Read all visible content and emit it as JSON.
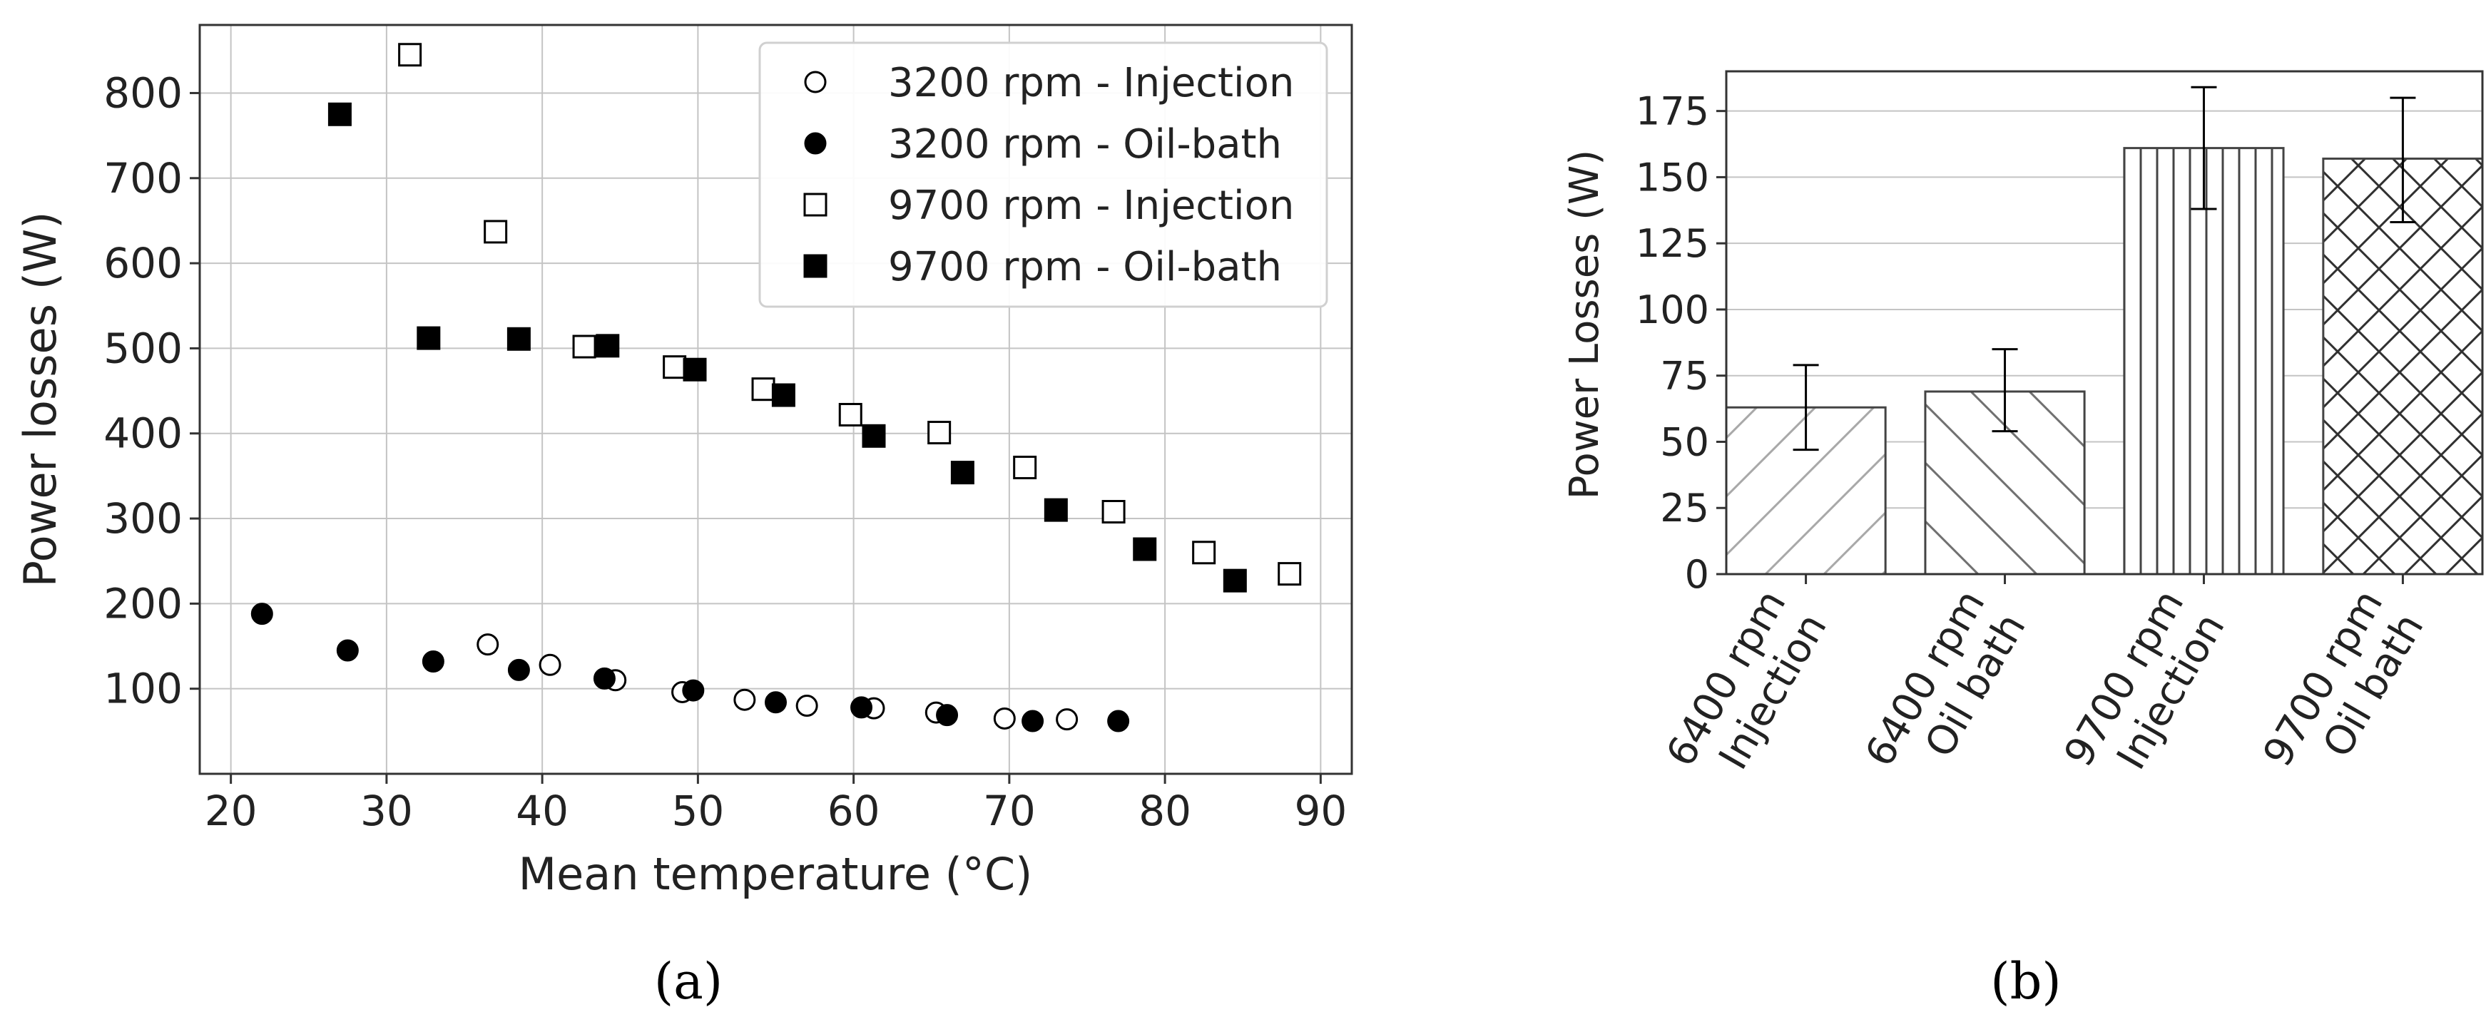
{
  "chart_data": [
    {
      "type": "scatter",
      "panel_label": "(a)",
      "xlabel": "Mean temperature (°C)",
      "ylabel": "Power losses (W)",
      "xlim": [
        18,
        92
      ],
      "ylim": [
        0,
        880
      ],
      "xticks": [
        20,
        30,
        40,
        50,
        60,
        70,
        80,
        90
      ],
      "yticks": [
        100,
        200,
        300,
        400,
        500,
        600,
        700,
        800
      ],
      "grid": true,
      "legend_position": "top-right",
      "series": [
        {
          "name": "3200 rpm - Injection",
          "marker": "circle-open",
          "x": [
            36.5,
            40.5,
            44.7,
            49.0,
            53.0,
            57.0,
            61.3,
            65.3,
            69.7,
            73.7
          ],
          "y": [
            152,
            128,
            110,
            96,
            87,
            80,
            77,
            72,
            65,
            64
          ]
        },
        {
          "name": "3200 rpm - Oil-bath",
          "marker": "circle-filled",
          "x": [
            22.0,
            27.5,
            33.0,
            38.5,
            44.0,
            49.7,
            55.0,
            60.5,
            66.0,
            71.5,
            77.0
          ],
          "y": [
            188,
            145,
            132,
            122,
            112,
            98,
            84,
            78,
            69,
            62,
            62
          ]
        },
        {
          "name": "9700 rpm - Injection",
          "marker": "square-open",
          "x": [
            31.5,
            37.0,
            42.7,
            48.5,
            54.2,
            59.8,
            65.5,
            71.0,
            76.7,
            82.5,
            88.0
          ],
          "y": [
            845,
            637,
            502,
            478,
            452,
            422,
            401,
            360,
            308,
            260,
            235
          ]
        },
        {
          "name": "9700 rpm - Oil-bath",
          "marker": "square-filled",
          "x": [
            27.0,
            32.7,
            38.5,
            44.2,
            49.8,
            55.5,
            61.3,
            67.0,
            73.0,
            78.7,
            84.5
          ],
          "y": [
            775,
            512,
            511,
            503,
            475,
            445,
            397,
            354,
            310,
            264,
            227
          ]
        }
      ]
    },
    {
      "type": "bar",
      "panel_label": "(b)",
      "ylabel": "Power Losses (W)",
      "ylim": [
        0,
        190
      ],
      "yticks": [
        0,
        25,
        50,
        75,
        100,
        125,
        150,
        175
      ],
      "grid": true,
      "categories": [
        [
          "6400 rpm",
          "Injection"
        ],
        [
          "6400 rpm",
          "Oil bath"
        ],
        [
          "9700 rpm",
          "Injection"
        ],
        [
          "9700 rpm",
          "Oil bath"
        ]
      ],
      "values": [
        63,
        69,
        161,
        157
      ],
      "error_low": [
        47,
        54,
        138,
        133
      ],
      "error_high": [
        79,
        85,
        184,
        180
      ],
      "hatches": [
        "slash",
        "backslash",
        "vertical",
        "cross"
      ]
    }
  ]
}
